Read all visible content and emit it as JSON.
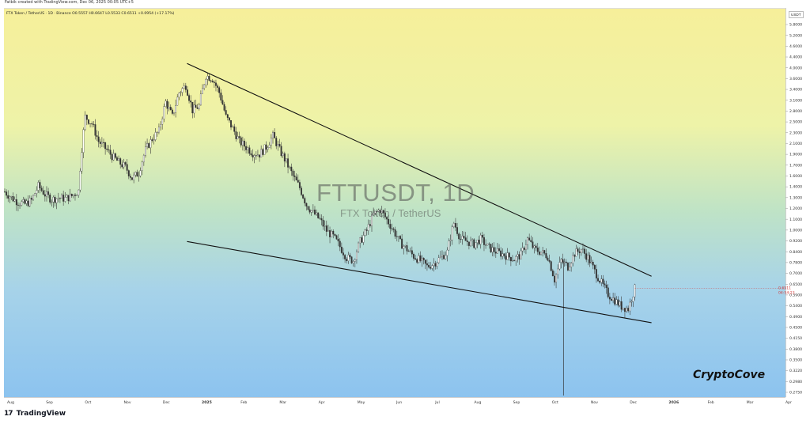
{
  "header": {
    "credit": "Fatbik created with TradingView.com, Dec 06, 2025 00:05 UTC+5",
    "symbol_legend": "FTX Token / TetherUS · 1D · Binance  O0.5557  H0.6647  L0.5533  C0.6511  +0.0954 (+17.17%)"
  },
  "watermark": {
    "ticker": "FTTUSDT, 1D",
    "name": "FTX Token / TetherUS"
  },
  "brand": "CryptoCove",
  "footer": {
    "logo_mark": "17",
    "logo_text": "TradingView"
  },
  "chart_data": {
    "type": "candlestick",
    "symbol": "FTTUSDT",
    "interval": "1D",
    "exchange": "Binance",
    "currency": "USDT",
    "scale": "log",
    "last_price": "0.6511",
    "countdown": "04:54:23",
    "ohlc_last": {
      "open": 0.5557,
      "high": 0.6647,
      "low": 0.5533,
      "close": 0.6511,
      "change": 0.0954,
      "change_pct": 17.17
    },
    "x_tick_labels": [
      "Aug",
      "Sep",
      "Oct",
      "Nov",
      "Dec",
      "2025",
      "Feb",
      "Mar",
      "Apr",
      "May",
      "Jun",
      "Jul",
      "Aug",
      "Sep",
      "Oct",
      "Nov",
      "Dec",
      "2026",
      "Feb",
      "Mar",
      "Apr"
    ],
    "y_tick_labels": [
      "5.8000",
      "5.2000",
      "4.6000",
      "4.4000",
      "4.0000",
      "3.6000",
      "3.4000",
      "3.1000",
      "2.8000",
      "2.5000",
      "2.3000",
      "2.1000",
      "1.9000",
      "1.7000",
      "1.6000",
      "1.4000",
      "1.3000",
      "1.2000",
      "1.1000",
      "1.0000",
      "0.9200",
      "0.8400",
      "0.7800",
      "0.7000",
      "0.6500",
      "0.5900",
      "0.5400",
      "0.4900",
      "0.4500",
      "0.4150",
      "0.3800",
      "0.3500",
      "0.3220",
      "0.2980",
      "0.2750"
    ],
    "price_series_approx": [
      1.45,
      1.38,
      1.33,
      1.31,
      1.35,
      1.52,
      1.42,
      1.36,
      1.38,
      1.37,
      1.4,
      1.46,
      2.7,
      2.55,
      2.2,
      2.08,
      1.95,
      1.85,
      1.78,
      1.62,
      1.7,
      2.05,
      2.25,
      2.4,
      3.05,
      2.7,
      3.3,
      3.5,
      2.85,
      2.95,
      3.8,
      3.7,
      3.3,
      2.7,
      2.45,
      2.2,
      2.1,
      2.0,
      1.98,
      2.1,
      2.3,
      2.05,
      1.85,
      1.65,
      1.5,
      1.3,
      1.22,
      1.15,
      1.05,
      1.0,
      0.92,
      0.84,
      0.82,
      0.96,
      1.05,
      1.2,
      1.25,
      1.15,
      1.05,
      0.95,
      0.9,
      0.85,
      0.82,
      0.78,
      0.8,
      0.84,
      0.88,
      1.12,
      0.98,
      0.96,
      0.94,
      0.98,
      0.92,
      0.89,
      0.87,
      0.85,
      0.83,
      0.86,
      0.98,
      0.9,
      0.88,
      0.85,
      0.7,
      0.82,
      0.78,
      0.87,
      0.9,
      0.84,
      0.75,
      0.68,
      0.62,
      0.59,
      0.56,
      0.55,
      0.65
    ],
    "trendlines": [
      {
        "name": "upper",
        "from": {
          "date": "2024-12-20",
          "price": 4.2
        },
        "to": {
          "date": "2025-12-18",
          "price": 0.72
        }
      },
      {
        "name": "lower",
        "from": {
          "date": "2024-12-20",
          "price": 0.96
        },
        "to": {
          "date": "2025-12-18",
          "price": 0.49
        }
      }
    ]
  }
}
